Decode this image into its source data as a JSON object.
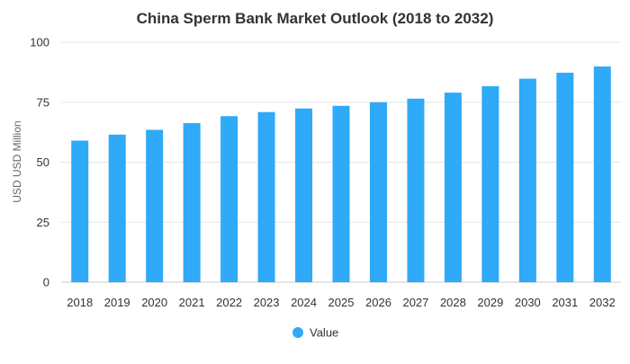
{
  "chart_data": {
    "type": "bar",
    "title": "China Sperm Bank Market Outlook (2018 to 2032)",
    "xlabel": "",
    "ylabel": "USD USD Million",
    "ylim": [
      0,
      100
    ],
    "yticks": [
      0,
      25,
      50,
      75,
      100
    ],
    "grid": true,
    "legend_position": "bottom",
    "categories": [
      "2018",
      "2019",
      "2020",
      "2021",
      "2022",
      "2023",
      "2024",
      "2025",
      "2026",
      "2027",
      "2028",
      "2029",
      "2030",
      "2031",
      "2032"
    ],
    "series": [
      {
        "name": "Value",
        "color": "#2eaaf8",
        "values": [
          59,
          61.5,
          63.5,
          66.3,
          69.2,
          70.9,
          72.4,
          73.5,
          75,
          76.5,
          79,
          81.7,
          84.8,
          87.3,
          89.9
        ]
      }
    ]
  }
}
